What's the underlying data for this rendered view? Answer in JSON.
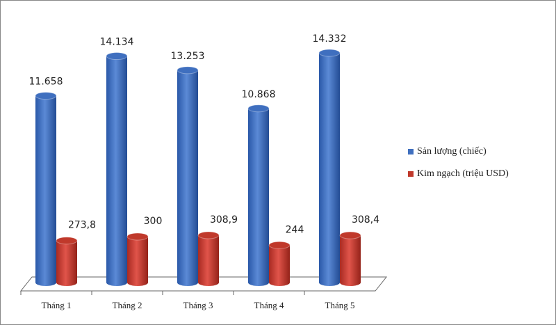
{
  "chart_data": {
    "type": "bar3d",
    "categories": [
      "Tháng 1",
      "Tháng 2",
      "Tháng 3",
      "Tháng 4",
      "Tháng 5"
    ],
    "series": [
      {
        "name": "Sản lượng (chiếc)",
        "color": "#3f6fbf",
        "values": [
          11658,
          14134,
          13253,
          10868,
          14332
        ],
        "value_labels": [
          "11.658",
          "14.134",
          "13.253",
          "10.868",
          "14.332"
        ]
      },
      {
        "name": "Kim ngạch (triệu USD)",
        "color": "#c0392b",
        "values": [
          273.8,
          300,
          308.9,
          244,
          308.4
        ],
        "value_labels": [
          "273,8",
          "300",
          "308,9",
          "244",
          "308,4"
        ]
      }
    ],
    "legend": "right"
  }
}
